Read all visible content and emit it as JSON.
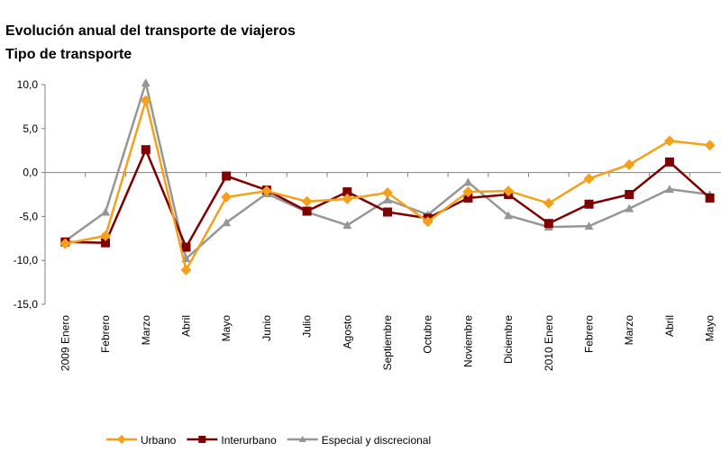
{
  "chart_data": {
    "type": "line",
    "title": "Evolución anual del transporte de viajeros",
    "subtitle": "Tipo de transporte",
    "categories": [
      "2009 Enero",
      "Febrero",
      "Marzo",
      "Abril",
      "Mayo",
      "Junio",
      "Julio",
      "Agosto",
      "Septiembre",
      "Octubre",
      "Noviembre",
      "Diciembre",
      "2010 Enero",
      "Febrero",
      "Marzo",
      "Abril",
      "Mayo"
    ],
    "ylim": [
      -15,
      10
    ],
    "yticks": [
      "10,0",
      "5,0",
      "0,0",
      "-5,0",
      "-10,0",
      "-15,0"
    ],
    "ytick_values": [
      10,
      5,
      0,
      -5,
      -10,
      -15
    ],
    "legend_position": "bottom",
    "grid": false,
    "series": [
      {
        "name": "Urbano",
        "color": "#F5A01A",
        "marker": "diamond",
        "values": [
          -8.1,
          -7.2,
          8.2,
          -11.1,
          -2.8,
          -2.1,
          -3.3,
          -3.0,
          -2.3,
          -5.6,
          -2.2,
          -2.1,
          -3.5,
          -0.7,
          0.9,
          3.6,
          3.1
        ]
      },
      {
        "name": "Interurbano",
        "color": "#7F0000",
        "marker": "square",
        "values": [
          -7.9,
          -8.0,
          2.6,
          -8.5,
          -0.4,
          -2.0,
          -4.4,
          -2.2,
          -4.5,
          -5.2,
          -2.9,
          -2.5,
          -5.8,
          -3.6,
          -2.5,
          1.2,
          -2.9
        ]
      },
      {
        "name": "Especial y discrecional",
        "color": "#969696",
        "marker": "triangle",
        "values": [
          -7.8,
          -4.5,
          10.2,
          -9.8,
          -5.7,
          -2.4,
          -4.5,
          -6.0,
          -3.1,
          -4.8,
          -1.1,
          -4.9,
          -6.2,
          -6.1,
          -4.1,
          -1.9,
          -2.5
        ]
      }
    ]
  }
}
